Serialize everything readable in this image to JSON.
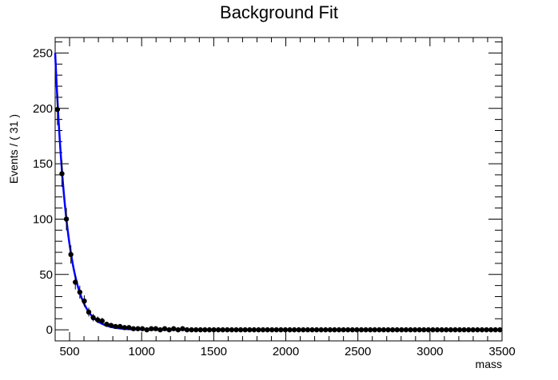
{
  "chart_data": {
    "type": "scatter",
    "title": "Background Fit",
    "xlabel": "mass",
    "ylabel": "Events / ( 31 )",
    "xlim": [
      400,
      3500
    ],
    "ylim": [
      -10,
      264
    ],
    "x_ticks": [
      500,
      1000,
      1500,
      2000,
      2500,
      3000,
      3500
    ],
    "y_ticks": [
      0,
      50,
      100,
      150,
      200,
      250
    ],
    "grid": false,
    "legend": "none",
    "colors": {
      "points": "#000000",
      "fit_line": "#0000ff",
      "axes": "#000000"
    },
    "series": [
      {
        "type": "points-with-errors",
        "x": [
          416,
          447,
          478,
          509,
          540,
          571,
          602,
          633,
          664,
          695,
          726,
          757,
          788,
          819,
          850,
          881,
          912,
          943,
          974,
          1005,
          1036,
          1067,
          1098,
          1129,
          1160,
          1191,
          1222,
          1253,
          1284,
          1315,
          1346,
          1377,
          1408,
          1439,
          1470,
          1501,
          1532,
          1563,
          1594,
          1625,
          1656,
          1687,
          1718,
          1749,
          1780,
          1811,
          1842,
          1873,
          1904,
          1935,
          1966,
          1997,
          2028,
          2059,
          2090,
          2121,
          2152,
          2183,
          2214,
          2245,
          2276,
          2307,
          2338,
          2369,
          2400,
          2431,
          2462,
          2493,
          2524,
          2555,
          2586,
          2617,
          2648,
          2679,
          2710,
          2741,
          2772,
          2803,
          2834,
          2865,
          2896,
          2927,
          2958,
          2989,
          3020,
          3051,
          3082,
          3113,
          3144,
          3175,
          3206,
          3237,
          3268,
          3299,
          3330,
          3361,
          3392,
          3423,
          3454,
          3485
        ],
        "y": [
          199,
          141,
          100,
          68,
          43,
          34,
          26,
          16,
          11,
          9,
          8,
          5,
          4,
          3,
          3,
          2,
          2,
          1,
          1,
          1,
          0,
          1,
          1,
          0,
          1,
          0,
          1,
          0,
          1,
          0,
          0,
          0,
          0,
          0,
          0,
          0,
          0,
          0,
          0,
          0,
          0,
          0,
          0,
          0,
          0,
          0,
          0,
          0,
          0,
          0,
          0,
          0,
          0,
          0,
          0,
          0,
          0,
          0,
          0,
          0,
          0,
          0,
          0,
          0,
          0,
          0,
          0,
          0,
          0,
          0,
          0,
          0,
          0,
          0,
          0,
          0,
          0,
          0,
          0,
          0,
          0,
          0,
          0,
          0,
          0,
          0,
          0,
          0,
          0,
          0,
          0,
          0,
          0,
          0,
          0,
          0,
          0,
          0,
          0,
          0
        ]
      },
      {
        "type": "fit-line",
        "model": "exponential",
        "amplitude_at_400": 250,
        "decay_length": 85
      }
    ]
  }
}
